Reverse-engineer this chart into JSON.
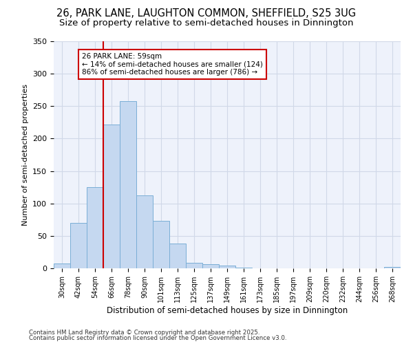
{
  "title_line1": "26, PARK LANE, LAUGHTON COMMON, SHEFFIELD, S25 3UG",
  "title_line2": "Size of property relative to semi-detached houses in Dinnington",
  "xlabel": "Distribution of semi-detached houses by size in Dinnington",
  "ylabel": "Number of semi-detached properties",
  "categories": [
    "30sqm",
    "42sqm",
    "54sqm",
    "66sqm",
    "78sqm",
    "90sqm",
    "101sqm",
    "113sqm",
    "125sqm",
    "137sqm",
    "149sqm",
    "161sqm",
    "173sqm",
    "185sqm",
    "197sqm",
    "209sqm",
    "220sqm",
    "232sqm",
    "244sqm",
    "256sqm",
    "268sqm"
  ],
  "values": [
    7,
    70,
    125,
    222,
    258,
    112,
    73,
    38,
    8,
    6,
    4,
    1,
    0,
    0,
    0,
    0,
    0,
    0,
    0,
    0,
    2
  ],
  "bar_color": "#c5d8f0",
  "bar_edge_color": "#7aaed6",
  "grid_color": "#d0d8e8",
  "background_color": "#eef2fb",
  "vline_color": "#cc0000",
  "annotation_text": "26 PARK LANE: 59sqm\n← 14% of semi-detached houses are smaller (124)\n86% of semi-detached houses are larger (786) →",
  "annotation_box_color": "#cc0000",
  "ylim": [
    0,
    350
  ],
  "footnote1": "Contains HM Land Registry data © Crown copyright and database right 2025.",
  "footnote2": "Contains public sector information licensed under the Open Government Licence v3.0.",
  "title_fontsize": 10.5,
  "subtitle_fontsize": 9.5
}
